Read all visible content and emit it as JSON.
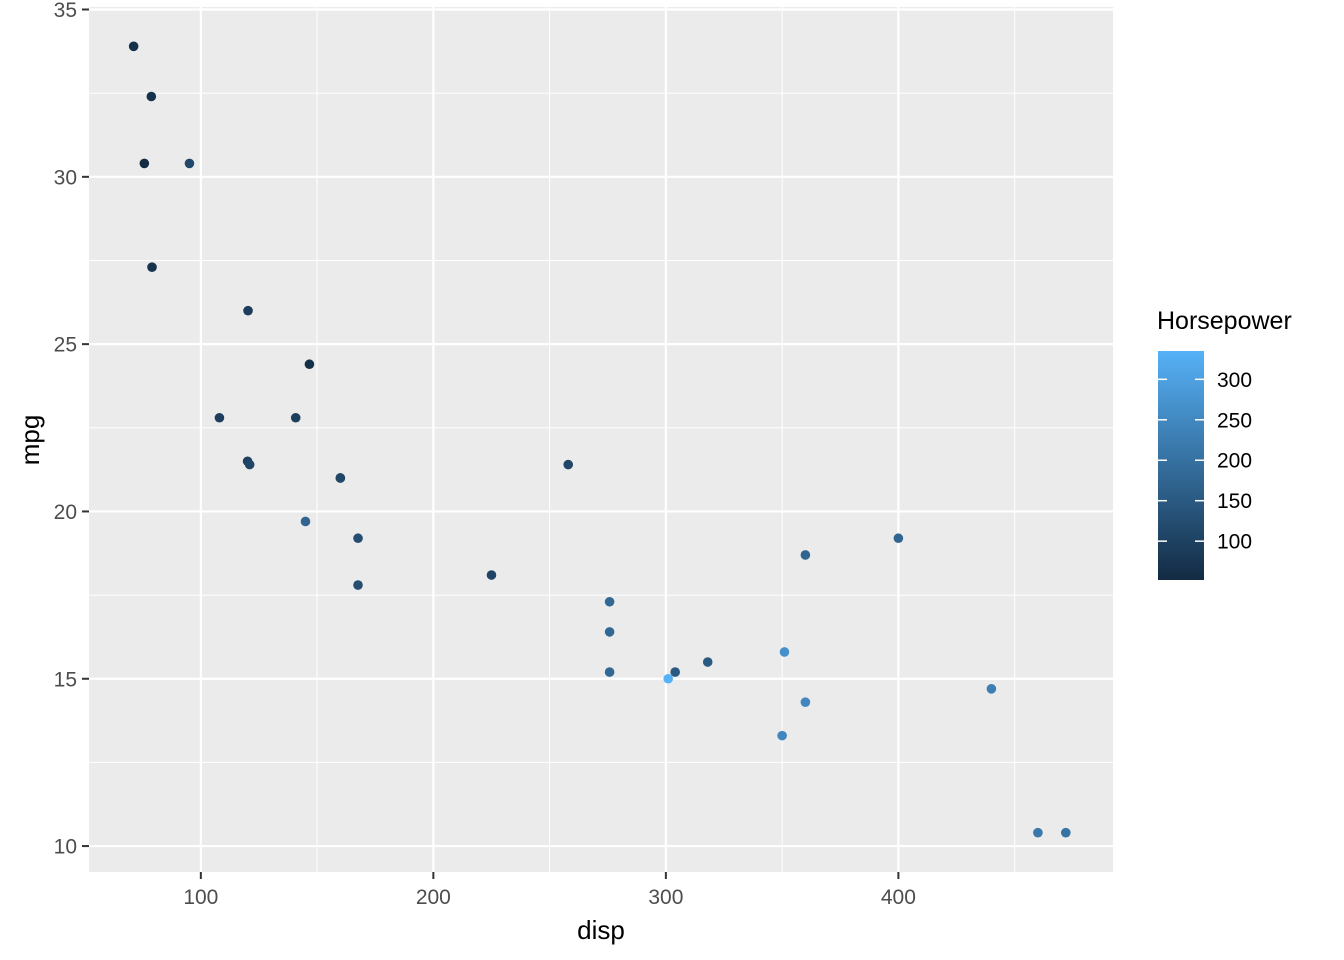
{
  "chart_data": {
    "type": "scatter",
    "xlabel": "disp",
    "ylabel": "mpg",
    "xlim": [
      51.9,
      492.3
    ],
    "ylim": [
      9.225,
      35.075
    ],
    "x_ticks": [
      100,
      200,
      300,
      400
    ],
    "y_ticks": [
      10,
      15,
      20,
      25,
      30,
      35
    ],
    "grid": true,
    "legend": {
      "title": "Horsepower",
      "position": "right",
      "ticks": [
        100,
        150,
        200,
        250,
        300
      ],
      "range": [
        52,
        335
      ],
      "low_color": "#132B43",
      "high_color": "#56B1F7"
    },
    "points": [
      {
        "x": 160,
        "y": 21,
        "hp": 110
      },
      {
        "x": 160,
        "y": 21,
        "hp": 110
      },
      {
        "x": 108,
        "y": 22.8,
        "hp": 93
      },
      {
        "x": 258,
        "y": 21.4,
        "hp": 110
      },
      {
        "x": 360,
        "y": 18.7,
        "hp": 175
      },
      {
        "x": 225,
        "y": 18.1,
        "hp": 105
      },
      {
        "x": 360,
        "y": 14.3,
        "hp": 245
      },
      {
        "x": 146.7,
        "y": 24.4,
        "hp": 62
      },
      {
        "x": 140.8,
        "y": 22.8,
        "hp": 95
      },
      {
        "x": 167.6,
        "y": 19.2,
        "hp": 123
      },
      {
        "x": 167.6,
        "y": 17.8,
        "hp": 123
      },
      {
        "x": 275.8,
        "y": 16.4,
        "hp": 180
      },
      {
        "x": 275.8,
        "y": 17.3,
        "hp": 180
      },
      {
        "x": 275.8,
        "y": 15.2,
        "hp": 180
      },
      {
        "x": 472,
        "y": 10.4,
        "hp": 205
      },
      {
        "x": 460,
        "y": 10.4,
        "hp": 215
      },
      {
        "x": 440,
        "y": 14.7,
        "hp": 230
      },
      {
        "x": 78.7,
        "y": 32.4,
        "hp": 66
      },
      {
        "x": 75.7,
        "y": 30.4,
        "hp": 52
      },
      {
        "x": 71.1,
        "y": 33.9,
        "hp": 65
      },
      {
        "x": 120.1,
        "y": 21.5,
        "hp": 97
      },
      {
        "x": 318,
        "y": 15.5,
        "hp": 150
      },
      {
        "x": 304,
        "y": 15.2,
        "hp": 150
      },
      {
        "x": 350,
        "y": 13.3,
        "hp": 245
      },
      {
        "x": 400,
        "y": 19.2,
        "hp": 175
      },
      {
        "x": 79,
        "y": 27.3,
        "hp": 66
      },
      {
        "x": 120.3,
        "y": 26,
        "hp": 91
      },
      {
        "x": 95.1,
        "y": 30.4,
        "hp": 113
      },
      {
        "x": 351,
        "y": 15.8,
        "hp": 264
      },
      {
        "x": 145,
        "y": 19.7,
        "hp": 175
      },
      {
        "x": 301,
        "y": 15,
        "hp": 335
      },
      {
        "x": 121,
        "y": 21.4,
        "hp": 109
      }
    ]
  }
}
